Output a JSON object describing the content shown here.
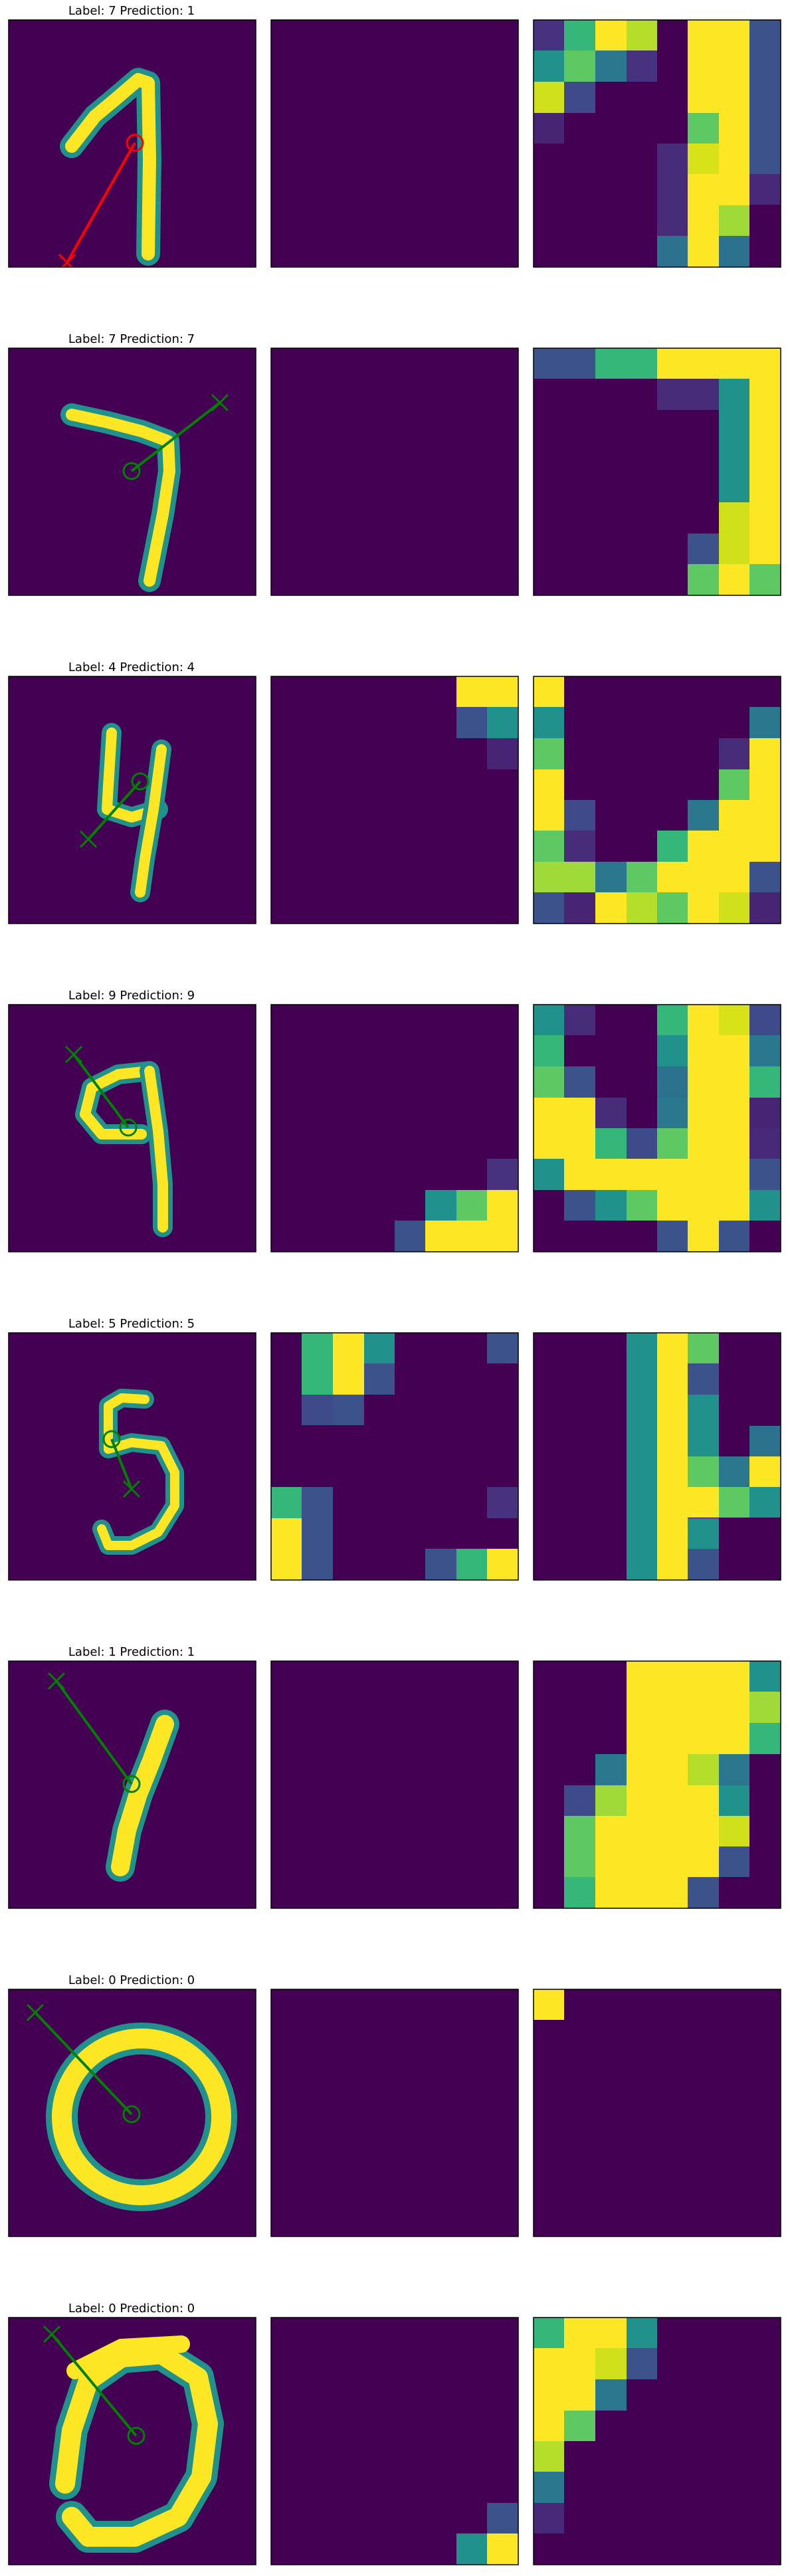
{
  "colors": {
    "background": "#440154",
    "low": "#3b528b",
    "mid": "#21918c",
    "midhigh": "#5ec962",
    "high": "#fde725",
    "correct": "#008000",
    "wrong": "#ff0000"
  },
  "rows": [
    {
      "title": "Label: 7 Prediction: 1",
      "label": 7,
      "prediction": 1,
      "correct": false
    },
    {
      "title": "Label: 7 Prediction: 7",
      "label": 7,
      "prediction": 7,
      "correct": true
    },
    {
      "title": "Label: 4 Prediction: 4",
      "label": 4,
      "prediction": 4,
      "correct": true
    },
    {
      "title": "Label: 9 Prediction: 9",
      "label": 9,
      "prediction": 9,
      "correct": true
    },
    {
      "title": "Label: 5 Prediction: 5",
      "label": 5,
      "prediction": 5,
      "correct": true
    },
    {
      "title": "Label: 1 Prediction: 1",
      "label": 1,
      "prediction": 1,
      "correct": true
    },
    {
      "title": "Label: 0 Prediction: 0",
      "label": 0,
      "prediction": 0,
      "correct": true
    },
    {
      "title": "Label: 0 Prediction: 0",
      "label": 0,
      "prediction": 0,
      "correct": true
    }
  ]
}
